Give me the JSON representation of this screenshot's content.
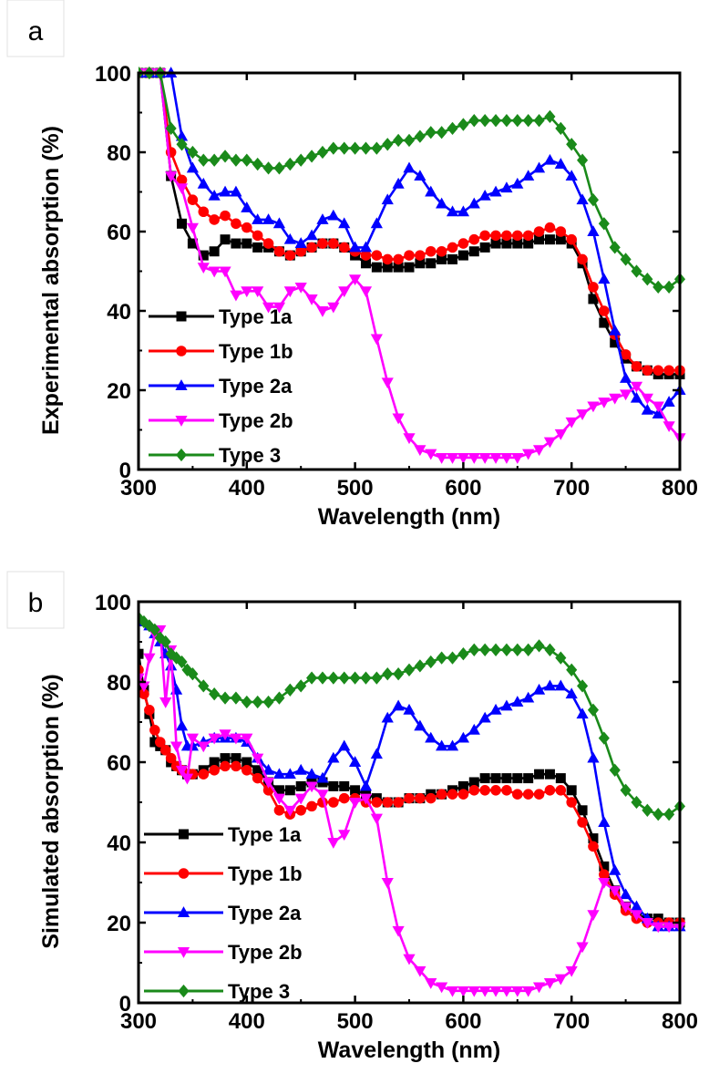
{
  "chart_data": [
    {
      "type": "line",
      "panel_label": "a",
      "xlabel": "Wavelength (nm)",
      "ylabel": "Experimental absorption (%)",
      "xlim": [
        300,
        800
      ],
      "ylim": [
        0,
        100
      ],
      "x_ticks": [
        300,
        400,
        500,
        600,
        700,
        800
      ],
      "y_ticks": [
        0,
        20,
        40,
        60,
        80,
        100
      ],
      "legend_position": "bottom-left",
      "x": [
        300,
        310,
        320,
        330,
        340,
        350,
        360,
        370,
        380,
        390,
        400,
        410,
        420,
        430,
        440,
        450,
        460,
        470,
        480,
        490,
        500,
        510,
        520,
        530,
        540,
        550,
        560,
        570,
        580,
        590,
        600,
        610,
        620,
        630,
        640,
        650,
        660,
        670,
        680,
        690,
        700,
        710,
        720,
        730,
        740,
        750,
        760,
        770,
        780,
        790,
        800
      ],
      "series": [
        {
          "name": "Type 1a",
          "color": "#000000",
          "marker": "square",
          "values": [
            100,
            100,
            100,
            74,
            62,
            57,
            54,
            55,
            58,
            57,
            57,
            56,
            56,
            55,
            54,
            55,
            56,
            57,
            57,
            56,
            54,
            52,
            51,
            51,
            51,
            51,
            52,
            52,
            53,
            53,
            54,
            55,
            56,
            57,
            57,
            57,
            57,
            58,
            58,
            58,
            57,
            52,
            43,
            37,
            32,
            28,
            26,
            25,
            24,
            24,
            24
          ]
        },
        {
          "name": "Type 1b",
          "color": "#ff0000",
          "marker": "circle",
          "values": [
            100,
            100,
            100,
            80,
            73,
            68,
            65,
            63,
            64,
            62,
            61,
            59,
            57,
            55,
            54,
            55,
            56,
            57,
            57,
            56,
            55,
            54,
            54,
            53,
            53,
            54,
            54,
            55,
            55,
            56,
            57,
            58,
            59,
            59,
            59,
            59,
            59,
            60,
            61,
            60,
            58,
            53,
            46,
            40,
            34,
            29,
            26,
            25,
            25,
            25,
            25
          ]
        },
        {
          "name": "Type 2a",
          "color": "#0000ff",
          "marker": "triangle-up",
          "values": [
            100,
            100,
            100,
            100,
            84,
            76,
            72,
            69,
            70,
            70,
            66,
            63,
            63,
            62,
            58,
            57,
            59,
            63,
            64,
            62,
            56,
            56,
            62,
            68,
            72,
            76,
            74,
            70,
            67,
            65,
            65,
            67,
            69,
            70,
            71,
            72,
            74,
            76,
            78,
            77,
            74,
            68,
            60,
            48,
            35,
            23,
            18,
            15,
            14,
            17,
            20
          ]
        },
        {
          "name": "Type 2b",
          "color": "#ff00ff",
          "marker": "triangle-down",
          "values": [
            100,
            100,
            100,
            74,
            71,
            61,
            51,
            50,
            50,
            44,
            45,
            45,
            41,
            41,
            45,
            46,
            43,
            40,
            41,
            45,
            48,
            45,
            33,
            22,
            13,
            8,
            5,
            4,
            3,
            3,
            3,
            3,
            3,
            3,
            3,
            3,
            4,
            5,
            7,
            9,
            12,
            14,
            16,
            17,
            18,
            19,
            21,
            18,
            16,
            11,
            8
          ]
        },
        {
          "name": "Type 3",
          "color": "#1a8a1a",
          "marker": "diamond",
          "values": [
            100,
            100,
            100,
            86,
            82,
            80,
            78,
            78,
            79,
            78,
            78,
            77,
            76,
            76,
            77,
            78,
            79,
            80,
            81,
            81,
            81,
            81,
            81,
            82,
            83,
            83,
            84,
            85,
            85,
            86,
            87,
            88,
            88,
            88,
            88,
            88,
            88,
            88,
            89,
            86,
            82,
            78,
            68,
            62,
            56,
            53,
            50,
            48,
            46,
            46,
            48
          ]
        }
      ]
    },
    {
      "type": "line",
      "panel_label": "b",
      "xlabel": "Wavelength (nm)",
      "ylabel": "Simulated absorption (%)",
      "xlim": [
        300,
        800
      ],
      "ylim": [
        0,
        100
      ],
      "x_ticks": [
        300,
        400,
        500,
        600,
        700,
        800
      ],
      "y_ticks": [
        0,
        20,
        40,
        60,
        80,
        100
      ],
      "legend_position": "bottom-left",
      "x": [
        300,
        305,
        310,
        315,
        320,
        325,
        330,
        335,
        340,
        345,
        350,
        360,
        370,
        380,
        390,
        400,
        410,
        420,
        430,
        440,
        450,
        460,
        470,
        480,
        490,
        500,
        510,
        520,
        530,
        540,
        550,
        560,
        570,
        580,
        590,
        600,
        610,
        620,
        630,
        640,
        650,
        660,
        670,
        680,
        690,
        700,
        710,
        720,
        730,
        740,
        750,
        760,
        770,
        780,
        790,
        800
      ],
      "series": [
        {
          "name": "Type 1a",
          "color": "#000000",
          "marker": "square",
          "values": [
            87,
            78,
            72,
            65,
            64,
            63,
            60,
            59,
            58,
            57,
            57,
            58,
            60,
            61,
            61,
            60,
            58,
            55,
            53,
            53,
            54,
            55,
            55,
            54,
            54,
            53,
            52,
            51,
            50,
            50,
            51,
            51,
            52,
            52,
            53,
            54,
            55,
            56,
            56,
            56,
            56,
            56,
            57,
            57,
            56,
            53,
            48,
            41,
            34,
            28,
            24,
            22,
            21,
            21,
            20,
            20
          ]
        },
        {
          "name": "Type 1b",
          "color": "#ff0000",
          "marker": "circle",
          "values": [
            83,
            77,
            73,
            68,
            65,
            63,
            61,
            59,
            58,
            57,
            57,
            57,
            58,
            59,
            59,
            58,
            56,
            53,
            48,
            47,
            48,
            49,
            50,
            50,
            51,
            51,
            50,
            50,
            50,
            50,
            51,
            51,
            51,
            52,
            52,
            52,
            53,
            53,
            53,
            53,
            52,
            52,
            52,
            53,
            53,
            50,
            45,
            39,
            32,
            27,
            23,
            21,
            20,
            20,
            20,
            20
          ]
        },
        {
          "name": "Type 2a",
          "color": "#0000ff",
          "marker": "triangle-up",
          "values": [
            95,
            95,
            94,
            92,
            90,
            87,
            84,
            78,
            69,
            64,
            64,
            65,
            66,
            66,
            66,
            65,
            61,
            58,
            57,
            57,
            58,
            57,
            56,
            61,
            64,
            60,
            54,
            62,
            71,
            74,
            73,
            69,
            66,
            64,
            64,
            66,
            68,
            71,
            73,
            74,
            75,
            76,
            78,
            79,
            79,
            77,
            72,
            61,
            45,
            33,
            27,
            24,
            21,
            19,
            19,
            19
          ]
        },
        {
          "name": "Type 2b",
          "color": "#ff00ff",
          "marker": "triangle-down",
          "values": [
            81,
            79,
            86,
            92,
            93,
            75,
            88,
            64,
            58,
            56,
            66,
            64,
            66,
            67,
            66,
            66,
            61,
            55,
            51,
            48,
            51,
            54,
            52,
            40,
            42,
            50,
            51,
            46,
            30,
            18,
            11,
            8,
            5,
            4,
            3,
            3,
            3,
            3,
            3,
            3,
            3,
            3,
            4,
            5,
            6,
            8,
            14,
            22,
            30,
            28,
            24,
            22,
            20,
            19,
            19,
            19
          ]
        },
        {
          "name": "Type 3",
          "color": "#1a8a1a",
          "marker": "diamond",
          "values": [
            96,
            95,
            94,
            93,
            91,
            90,
            87,
            86,
            85,
            83,
            82,
            79,
            77,
            76,
            76,
            75,
            75,
            75,
            76,
            78,
            79,
            81,
            81,
            81,
            81,
            81,
            81,
            81,
            82,
            82,
            83,
            84,
            85,
            86,
            86,
            87,
            88,
            88,
            88,
            88,
            88,
            88,
            89,
            88,
            86,
            83,
            79,
            73,
            66,
            58,
            53,
            50,
            48,
            47,
            47,
            49
          ]
        }
      ]
    }
  ]
}
